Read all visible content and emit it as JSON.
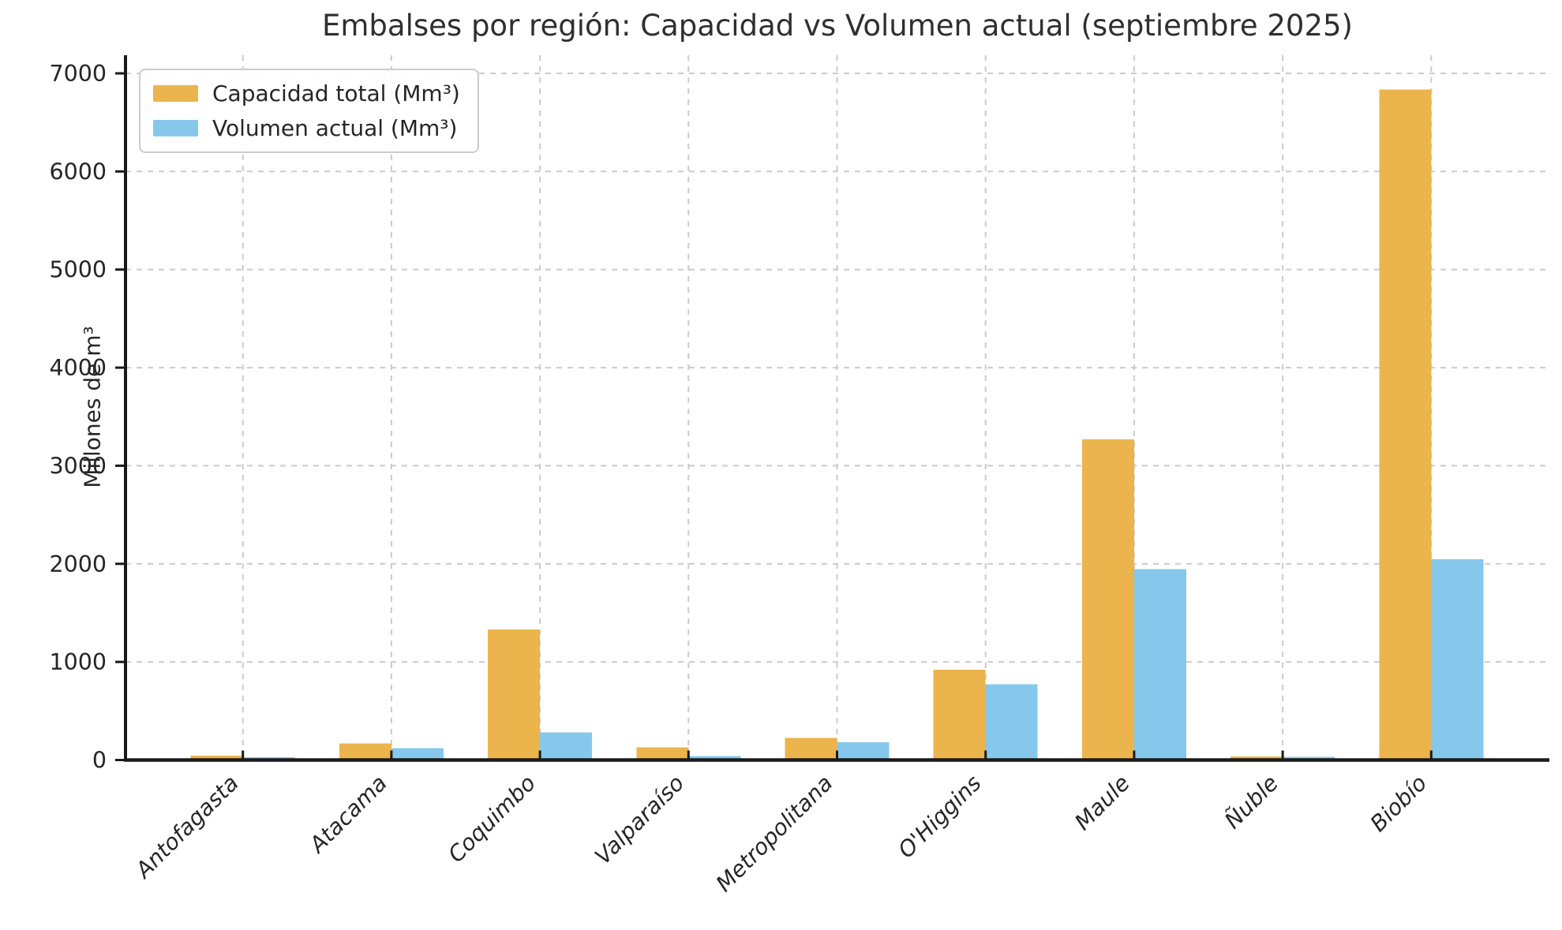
{
  "chart_data": {
    "type": "bar",
    "title": "Embalses por región: Capacidad vs Volumen actual (septiembre 2025)",
    "ylabel": "Millones de m³",
    "categories": [
      "Antofagasta",
      "Atacama",
      "Coquimbo",
      "Valparaíso",
      "Metropolitana",
      "O'Higgins",
      "Maule",
      "Ñuble",
      "Biobío"
    ],
    "series": [
      {
        "name": "Capacidad total (Mm³)",
        "color": "#EBB44C",
        "values": [
          45,
          170,
          1330,
          130,
          225,
          920,
          3270,
          38,
          6835
        ]
      },
      {
        "name": "Volumen actual (Mm³)",
        "color": "#85C8EB",
        "values": [
          30,
          120,
          280,
          40,
          180,
          770,
          1945,
          32,
          2045
        ]
      }
    ],
    "ylim": [
      0,
      7000
    ],
    "yticks": [
      0,
      1000,
      2000,
      3000,
      4000,
      5000,
      6000,
      7000
    ],
    "grid": true,
    "grid_style": "dashed",
    "legend_position": "upper-left",
    "colors": {
      "text": "#262626",
      "grid": "#cbcbcb",
      "axis": "#1a1a1a"
    },
    "x_tick_label_style": "italic, rotated 45°"
  }
}
